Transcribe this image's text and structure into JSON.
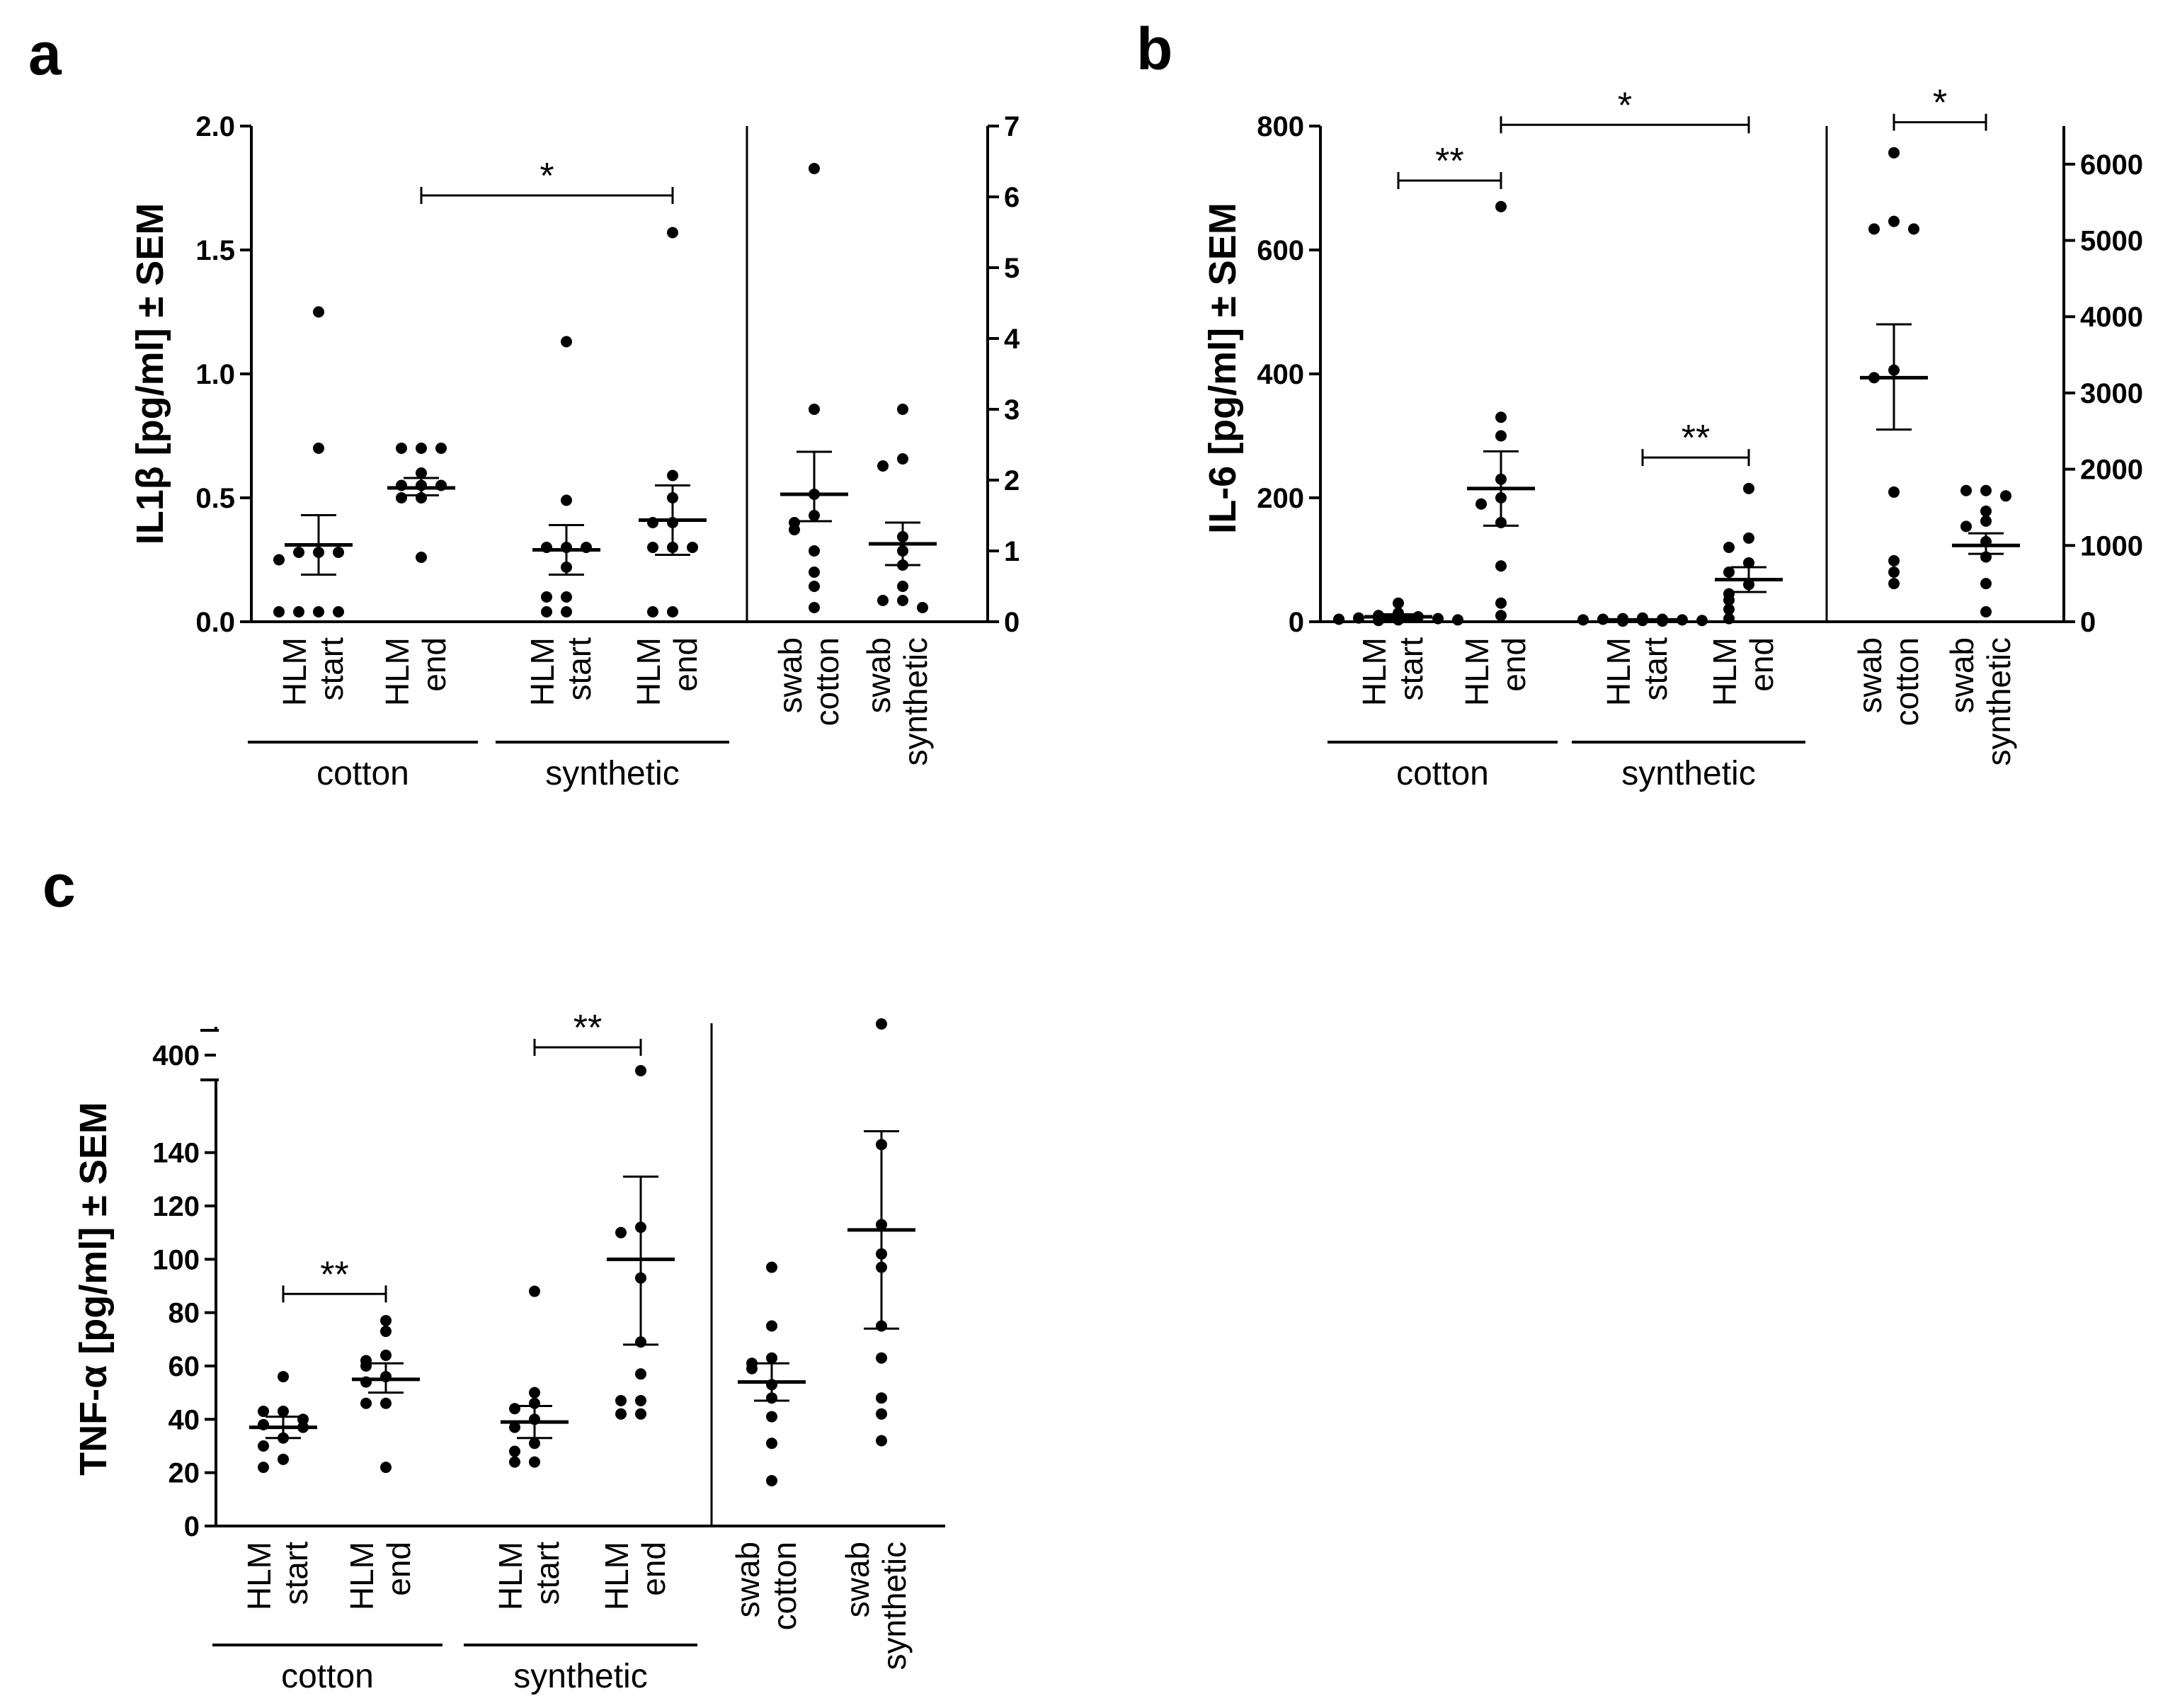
{
  "figure": {
    "panel_labels": [
      "a",
      "b",
      "c"
    ]
  },
  "chart_data": [
    {
      "panel": "a",
      "type": "scatter",
      "subtype": "dot-plot with mean ± SEM",
      "ylabel": "IL1β [pg/ml] ± SEM",
      "left_axis": {
        "ylim": [
          0,
          2.0
        ],
        "ticks": [
          "0.0",
          "0.5",
          "1.0",
          "1.5",
          "2.0"
        ],
        "tick_values": [
          0,
          0.5,
          1.0,
          1.5,
          2.0
        ]
      },
      "right_axis": {
        "ylim": [
          0,
          7
        ],
        "ticks": [
          "0",
          "1",
          "2",
          "3",
          "4",
          "5",
          "6",
          "7"
        ],
        "tick_values": [
          0,
          1,
          2,
          3,
          4,
          5,
          6,
          7
        ]
      },
      "categories": [
        {
          "lines": [
            "HLM",
            "start"
          ],
          "axis": "left",
          "points": [
            1.25,
            0.7,
            0.28,
            0.28,
            0.28,
            0.25,
            0.04,
            0.04,
            0.04,
            0.04
          ],
          "mean": 0.31,
          "sem_low": 0.19,
          "sem_high": 0.43
        },
        {
          "lines": [
            "HLM",
            "end"
          ],
          "axis": "left",
          "points": [
            0.7,
            0.7,
            0.7,
            0.6,
            0.55,
            0.55,
            0.55,
            0.5,
            0.5,
            0.26
          ],
          "mean": 0.54,
          "sem_low": 0.51,
          "sem_high": 0.58
        },
        {
          "lines": [
            "HLM",
            "start"
          ],
          "axis": "left",
          "points": [
            1.13,
            0.49,
            0.3,
            0.3,
            0.3,
            0.22,
            0.1,
            0.1,
            0.04,
            0.04
          ],
          "mean": 0.29,
          "sem_low": 0.19,
          "sem_high": 0.39
        },
        {
          "lines": [
            "HLM",
            "end"
          ],
          "axis": "left",
          "points": [
            1.57,
            0.59,
            0.5,
            0.4,
            0.4,
            0.3,
            0.3,
            0.3,
            0.04,
            0.04
          ],
          "mean": 0.41,
          "sem_low": 0.27,
          "sem_high": 0.55
        },
        {
          "lines": [
            "swab",
            "cotton"
          ],
          "axis": "right",
          "points": [
            6.4,
            3.0,
            1.8,
            1.5,
            1.4,
            1.3,
            1.0,
            0.7,
            0.5,
            0.2
          ],
          "mean": 1.8,
          "sem_low": 1.42,
          "sem_high": 2.4
        },
        {
          "lines": [
            "swab",
            "synthetic"
          ],
          "axis": "right",
          "points": [
            3.0,
            2.3,
            2.2,
            1.2,
            1.0,
            0.8,
            0.5,
            0.3,
            0.3,
            0.2
          ],
          "mean": 1.1,
          "sem_low": 0.8,
          "sem_high": 1.4
        }
      ],
      "groups": [
        {
          "label": "cotton",
          "categories": [
            0,
            1
          ]
        },
        {
          "label": "synthetic",
          "categories": [
            2,
            3
          ]
        }
      ],
      "significance": [
        {
          "from": 1,
          "to": 3,
          "label": "*",
          "value": 1.72
        }
      ]
    },
    {
      "panel": "b",
      "type": "scatter",
      "subtype": "dot-plot with mean ± SEM",
      "ylabel": "IL-6 [pg/ml] ± SEM",
      "left_axis": {
        "ylim": [
          0,
          800
        ],
        "ticks": [
          "0",
          "200",
          "400",
          "600",
          "800"
        ],
        "tick_values": [
          0,
          200,
          400,
          600,
          800
        ]
      },
      "right_axis": {
        "ylim": [
          0,
          6500
        ],
        "ticks": [
          "0",
          "1000",
          "2000",
          "3000",
          "4000",
          "5000",
          "6000"
        ],
        "tick_values": [
          0,
          1000,
          2000,
          3000,
          4000,
          5000,
          6000
        ]
      },
      "categories": [
        {
          "lines": [
            "HLM",
            "start"
          ],
          "axis": "left",
          "points": [
            30,
            14,
            10,
            8,
            6,
            5,
            4,
            3,
            3,
            2
          ],
          "mean": 8,
          "sem_low": 4,
          "sem_high": 12
        },
        {
          "lines": [
            "HLM",
            "end"
          ],
          "axis": "left",
          "points": [
            670,
            330,
            300,
            230,
            200,
            190,
            160,
            90,
            30,
            10
          ],
          "mean": 215,
          "sem_low": 155,
          "sem_high": 275
        },
        {
          "lines": [
            "HLM",
            "start"
          ],
          "axis": "left",
          "points": [
            6,
            5,
            4,
            4,
            3,
            3,
            2,
            2,
            1,
            1
          ],
          "mean": 3,
          "sem_low": 2,
          "sem_high": 4
        },
        {
          "lines": [
            "HLM",
            "end"
          ],
          "axis": "left",
          "points": [
            215,
            135,
            120,
            95,
            80,
            60,
            45,
            35,
            20,
            5
          ],
          "mean": 68,
          "sem_low": 48,
          "sem_high": 88
        },
        {
          "lines": [
            "swab",
            "cotton"
          ],
          "axis": "right",
          "points": [
            6150,
            5250,
            5150,
            5150,
            3300,
            3200,
            1700,
            800,
            650,
            500
          ],
          "mean": 3200,
          "sem_low": 2520,
          "sem_high": 3900
        },
        {
          "lines": [
            "swab",
            "synthetic"
          ],
          "axis": "right",
          "points": [
            1720,
            1720,
            1650,
            1450,
            1320,
            1250,
            1050,
            850,
            500,
            130
          ],
          "mean": 1000,
          "sem_low": 890,
          "sem_high": 1160
        }
      ],
      "groups": [
        {
          "label": "cotton",
          "categories": [
            0,
            1
          ]
        },
        {
          "label": "synthetic",
          "categories": [
            2,
            3
          ]
        }
      ],
      "significance": [
        {
          "from": 0,
          "to": 1,
          "label": "**",
          "value": 712
        },
        {
          "from": 1,
          "to": 3,
          "label": "*",
          "value": 802
        },
        {
          "from": 2,
          "to": 3,
          "label": "**",
          "value": 265
        },
        {
          "from": 4,
          "to": 5,
          "label": "*",
          "value": 6550
        }
      ]
    },
    {
      "panel": "c",
      "type": "scatter",
      "subtype": "dot-plot with mean ± SEM, broken y-axis",
      "ylabel": "TNF-α [pg/ml] ± SEM",
      "left_axis": {
        "ylim": [
          0,
          150
        ],
        "ticks": [
          "0",
          "20",
          "40",
          "60",
          "80",
          "100",
          "120",
          "140"
        ],
        "tick_values": [
          0,
          20,
          40,
          60,
          80,
          100,
          120,
          140
        ],
        "break_above": 150,
        "upper_ticks": [
          "400"
        ],
        "upper_tick_values": [
          400
        ]
      },
      "categories": [
        {
          "lines": [
            "HLM",
            "start"
          ],
          "axis": "left",
          "points": [
            56,
            43,
            43,
            40,
            38,
            37,
            33,
            30,
            25,
            22
          ],
          "mean": 37,
          "sem_low": 33,
          "sem_high": 41
        },
        {
          "lines": [
            "HLM",
            "end"
          ],
          "axis": "left",
          "points": [
            77,
            73,
            64,
            62,
            60,
            56,
            54,
            46,
            46,
            22
          ],
          "mean": 55,
          "sem_low": 50,
          "sem_high": 61
        },
        {
          "lines": [
            "HLM",
            "start"
          ],
          "axis": "left",
          "points": [
            88,
            50,
            46,
            44,
            40,
            37,
            31,
            28,
            24,
            24
          ],
          "mean": 39,
          "sem_low": 33,
          "sem_high": 45
        },
        {
          "lines": [
            "HLM",
            "end"
          ],
          "axis": "left",
          "points": [
            390,
            112,
            110,
            93,
            69,
            57,
            47,
            47,
            42,
            42
          ],
          "mean": 100,
          "sem_low": 68,
          "sem_high": 131
        },
        {
          "lines": [
            "swab",
            "cotton"
          ],
          "axis": "left",
          "points": [
            97,
            75,
            63,
            61,
            59,
            53,
            48,
            41,
            31,
            17
          ],
          "mean": 54,
          "sem_low": 47,
          "sem_high": 61
        },
        {
          "lines": [
            "swab",
            "synthetic"
          ],
          "axis": "left",
          "points": [
            420,
            143,
            113,
            102,
            97,
            75,
            63,
            48,
            42,
            32
          ],
          "mean": 111,
          "sem_low": 74,
          "sem_high": 148
        }
      ],
      "groups": [
        {
          "label": "cotton",
          "categories": [
            0,
            1
          ]
        },
        {
          "label": "synthetic",
          "categories": [
            2,
            3
          ]
        }
      ],
      "significance": [
        {
          "from": 0,
          "to": 1,
          "label": "**",
          "value": 87
        },
        {
          "from": 2,
          "to": 3,
          "label": "**",
          "value": 405
        }
      ]
    }
  ]
}
